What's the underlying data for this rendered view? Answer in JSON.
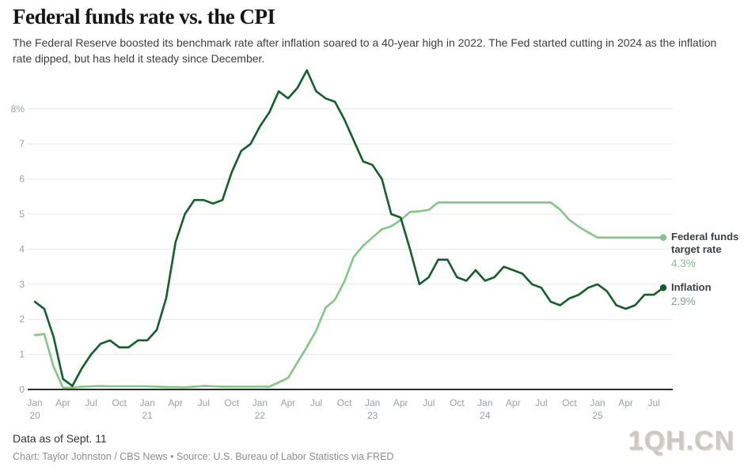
{
  "header": {
    "title": "Federal funds rate vs. the CPI",
    "subtitle": "The Federal Reserve boosted its benchmark rate after inflation soared to a 40-year high in 2022. The Fed started cutting in 2024 as the inflation rate dipped, but has held it steady since December."
  },
  "legend": {
    "federal_funds": {
      "label_line1": "Federal funds",
      "label_line2": "target rate",
      "value": "4.3%"
    },
    "inflation": {
      "label": "Inflation",
      "value": "2.9%"
    }
  },
  "footer": {
    "data_as_of": "Data as of Sept. 11",
    "credit": "Chart: Taylor Johnston / CBS News • Source: U.S. Bureau of Labor Statistics via FRED"
  },
  "watermark": "1QH.CN",
  "chart_data": {
    "type": "line",
    "title": "Federal funds rate vs. the CPI",
    "x_unit": "month",
    "x_start": "Jan 2020",
    "x_end": "Aug 2025",
    "ylim": [
      0,
      9.3
    ],
    "grid": true,
    "legend_position": "right-of-line-ends",
    "y_ticks": [
      {
        "v": 0,
        "label": "0"
      },
      {
        "v": 1,
        "label": "1"
      },
      {
        "v": 2,
        "label": "2"
      },
      {
        "v": 3,
        "label": "3"
      },
      {
        "v": 4,
        "label": "4"
      },
      {
        "v": 5,
        "label": "5"
      },
      {
        "v": 6,
        "label": "6"
      },
      {
        "v": 7,
        "label": "7"
      },
      {
        "v": 8,
        "label": "8%"
      }
    ],
    "x_ticks": [
      {
        "m": 0,
        "label": "Jan",
        "year": "20"
      },
      {
        "m": 3,
        "label": "Apr"
      },
      {
        "m": 6,
        "label": "Jul"
      },
      {
        "m": 9,
        "label": "Oct"
      },
      {
        "m": 12,
        "label": "Jan",
        "year": "21"
      },
      {
        "m": 15,
        "label": "Apr"
      },
      {
        "m": 18,
        "label": "Jul"
      },
      {
        "m": 21,
        "label": "Oct"
      },
      {
        "m": 24,
        "label": "Jan",
        "year": "22"
      },
      {
        "m": 27,
        "label": "Apr"
      },
      {
        "m": 30,
        "label": "Jul"
      },
      {
        "m": 33,
        "label": "Oct"
      },
      {
        "m": 36,
        "label": "Jan",
        "year": "23"
      },
      {
        "m": 39,
        "label": "Apr"
      },
      {
        "m": 42,
        "label": "Jul"
      },
      {
        "m": 45,
        "label": "Oct"
      },
      {
        "m": 48,
        "label": "Jan",
        "year": "24"
      },
      {
        "m": 51,
        "label": "Apr"
      },
      {
        "m": 54,
        "label": "Jul"
      },
      {
        "m": 57,
        "label": "Oct"
      },
      {
        "m": 60,
        "label": "Jan",
        "year": "25"
      },
      {
        "m": 63,
        "label": "Apr"
      },
      {
        "m": 66,
        "label": "Jul"
      }
    ],
    "series": [
      {
        "name": "Federal funds target rate",
        "color": "#84c686",
        "end_value": "4.3%",
        "values": [
          1.55,
          1.58,
          0.65,
          0.05,
          0.05,
          0.08,
          0.09,
          0.1,
          0.09,
          0.09,
          0.09,
          0.09,
          0.09,
          0.08,
          0.07,
          0.07,
          0.06,
          0.08,
          0.1,
          0.09,
          0.08,
          0.08,
          0.08,
          0.08,
          0.08,
          0.08,
          0.2,
          0.33,
          0.77,
          1.21,
          1.68,
          2.33,
          2.56,
          3.08,
          3.78,
          4.1,
          4.33,
          4.57,
          4.65,
          4.83,
          5.06,
          5.08,
          5.12,
          5.33,
          5.33,
          5.33,
          5.33,
          5.33,
          5.33,
          5.33,
          5.33,
          5.33,
          5.33,
          5.33,
          5.33,
          5.33,
          5.13,
          4.83,
          4.64,
          4.48,
          4.33,
          4.33,
          4.33,
          4.33,
          4.33,
          4.33,
          4.33,
          4.33
        ]
      },
      {
        "name": "Inflation",
        "color": "#135f28",
        "end_value": "2.9%",
        "values": [
          2.5,
          2.3,
          1.5,
          0.3,
          0.1,
          0.6,
          1.0,
          1.3,
          1.4,
          1.2,
          1.2,
          1.4,
          1.4,
          1.7,
          2.6,
          4.2,
          5.0,
          5.4,
          5.4,
          5.3,
          5.4,
          6.2,
          6.8,
          7.0,
          7.5,
          7.9,
          8.5,
          8.3,
          8.6,
          9.1,
          8.5,
          8.3,
          8.2,
          7.7,
          7.1,
          6.5,
          6.4,
          6.0,
          5.0,
          4.9,
          4.0,
          3.0,
          3.2,
          3.7,
          3.7,
          3.2,
          3.1,
          3.4,
          3.1,
          3.2,
          3.5,
          3.4,
          3.3,
          3.0,
          2.9,
          2.5,
          2.4,
          2.6,
          2.7,
          2.9,
          3.0,
          2.8,
          2.4,
          2.3,
          2.4,
          2.7,
          2.7,
          2.9
        ]
      }
    ]
  }
}
